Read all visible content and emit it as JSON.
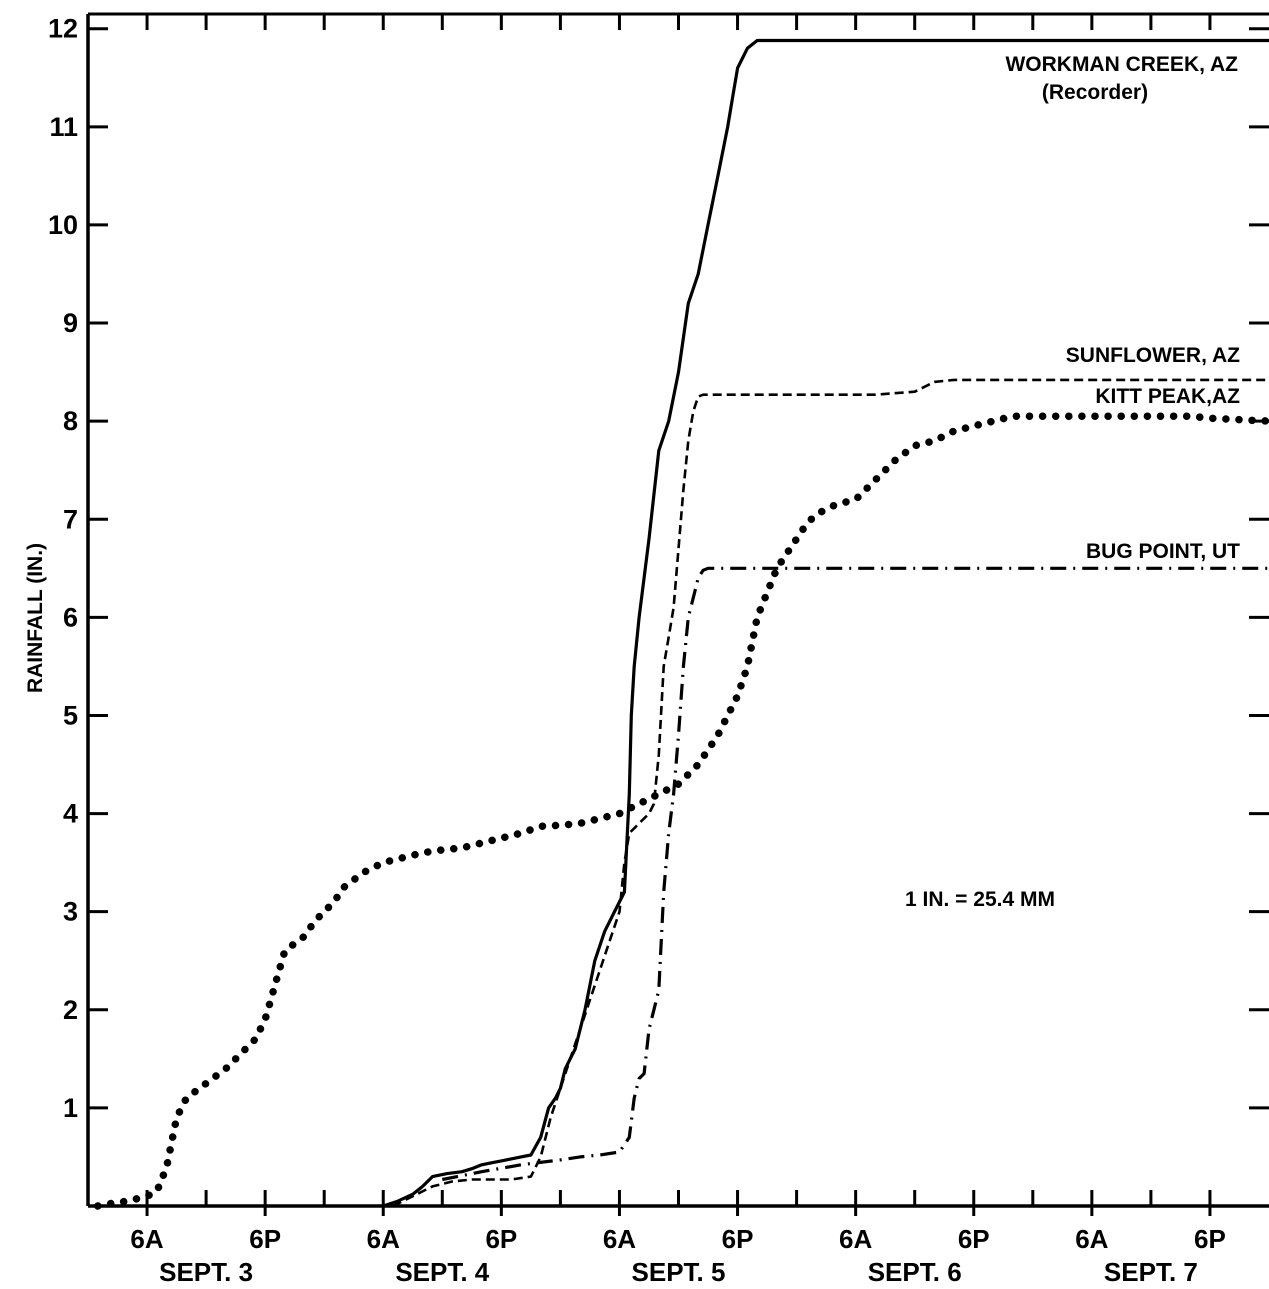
{
  "chart_data": {
    "type": "line",
    "title": "",
    "xlabel": "",
    "ylabel": "RAINFALL (IN.)",
    "ylim": [
      0,
      12
    ],
    "xlim_hours_from_sept3_midnight": [
      0,
      120
    ],
    "yticks": [
      "1",
      "2",
      "3",
      "4",
      "5",
      "6",
      "7",
      "8",
      "9",
      "10",
      "11",
      "12"
    ],
    "xticks": [
      {
        "time": "6A",
        "day": "SEPT. 3"
      },
      {
        "time": "6P",
        "day": ""
      },
      {
        "time": "6A",
        "day": "SEPT. 4"
      },
      {
        "time": "6P",
        "day": ""
      },
      {
        "time": "6A",
        "day": "SEPT. 5"
      },
      {
        "time": "6P",
        "day": ""
      },
      {
        "time": "6A",
        "day": "SEPT. 6"
      },
      {
        "time": "6P",
        "day": ""
      },
      {
        "time": "6A",
        "day": "SEPT. 7"
      },
      {
        "time": "6P",
        "day": ""
      }
    ],
    "xtick_hours": [
      6,
      18,
      30,
      42,
      54,
      66,
      78,
      90,
      102,
      114
    ],
    "day_label_hours": [
      12,
      36,
      60,
      84,
      108
    ],
    "day_labels": [
      "SEPT. 3",
      "SEPT. 4",
      "SEPT. 5",
      "SEPT. 6",
      "SEPT. 7"
    ],
    "annotation": "1 IN. = 25.4 MM",
    "grid": false,
    "series": [
      {
        "name": "WORKMAN CREEK, AZ",
        "subname": "(Recorder)",
        "style": "solid",
        "x": [
          30,
          31.5,
          33,
          34,
          35,
          36.5,
          38,
          39,
          40,
          41,
          42,
          43,
          44,
          45,
          46,
          46.8,
          47.5,
          48,
          48.5,
          49,
          49.5,
          50.5,
          51.5,
          52.5,
          53.5,
          54.5,
          55,
          55.2,
          55.5,
          56,
          57,
          58,
          59,
          60,
          61,
          62,
          63,
          64,
          65,
          65.5,
          66,
          67,
          68,
          69,
          70,
          71,
          72,
          80,
          90,
          100,
          110,
          120
        ],
        "y": [
          0,
          0.05,
          0.12,
          0.2,
          0.3,
          0.33,
          0.35,
          0.38,
          0.42,
          0.44,
          0.46,
          0.48,
          0.5,
          0.52,
          0.7,
          1.0,
          1.1,
          1.2,
          1.4,
          1.5,
          1.6,
          2.0,
          2.5,
          2.8,
          3.0,
          3.2,
          4.2,
          5.0,
          5.5,
          6.0,
          6.8,
          7.7,
          8.0,
          8.5,
          9.2,
          9.5,
          10.0,
          10.5,
          11.0,
          11.3,
          11.6,
          11.8,
          11.88,
          11.88,
          11.88,
          11.88,
          11.88,
          11.88,
          11.88,
          11.88,
          11.88,
          11.88
        ],
        "end_label": "WORKMAN CREEK, AZ"
      },
      {
        "name": "SUNFLOWER, AZ",
        "style": "dashed",
        "x": [
          31,
          33,
          35,
          37,
          39,
          41,
          43,
          45,
          46,
          47,
          48,
          49,
          50,
          51,
          52,
          53,
          54,
          54.5,
          55,
          56,
          57,
          57.5,
          58,
          58.5,
          59,
          59.5,
          60,
          60.5,
          61,
          61.5,
          62,
          62.5,
          63,
          64,
          66,
          70,
          74,
          80,
          84,
          86,
          88,
          94,
          100,
          110,
          120
        ],
        "y": [
          0,
          0.1,
          0.2,
          0.25,
          0.27,
          0.27,
          0.27,
          0.3,
          0.5,
          0.9,
          1.2,
          1.5,
          1.8,
          2.1,
          2.4,
          2.7,
          3.0,
          3.5,
          3.8,
          3.9,
          4.0,
          4.1,
          4.6,
          5.5,
          5.8,
          6.1,
          6.7,
          7.3,
          7.8,
          8.1,
          8.25,
          8.27,
          8.27,
          8.27,
          8.27,
          8.27,
          8.27,
          8.27,
          8.3,
          8.4,
          8.42,
          8.42,
          8.42,
          8.42,
          8.42
        ]
      },
      {
        "name": "KITT PEAK,AZ",
        "style": "dotted",
        "x": [
          1,
          2,
          4,
          6,
          7,
          8,
          9,
          10,
          12,
          14,
          16,
          17,
          18,
          20,
          22,
          23,
          24,
          25,
          26,
          28,
          30,
          32,
          34,
          36,
          38,
          40,
          42,
          44,
          46,
          48,
          50,
          52,
          54,
          56,
          58,
          60,
          62,
          64,
          65,
          66,
          67,
          68,
          70,
          72,
          73,
          74,
          75,
          76,
          78,
          80,
          82,
          84,
          86,
          88,
          90,
          92,
          94,
          96,
          98,
          100,
          102,
          104,
          106,
          108,
          110,
          112,
          114,
          116,
          118,
          120
        ],
        "y": [
          0,
          0.02,
          0.05,
          0.1,
          0.15,
          0.4,
          0.9,
          1.1,
          1.25,
          1.4,
          1.6,
          1.7,
          1.9,
          2.6,
          2.75,
          2.9,
          3.0,
          3.1,
          3.25,
          3.4,
          3.5,
          3.55,
          3.6,
          3.63,
          3.65,
          3.7,
          3.75,
          3.8,
          3.87,
          3.88,
          3.9,
          3.95,
          4.0,
          4.1,
          4.2,
          4.3,
          4.5,
          4.8,
          5.0,
          5.2,
          5.5,
          6.0,
          6.5,
          6.8,
          6.95,
          7.05,
          7.1,
          7.15,
          7.2,
          7.4,
          7.6,
          7.75,
          7.8,
          7.9,
          7.95,
          8.0,
          8.05,
          8.05,
          8.05,
          8.05,
          8.05,
          8.05,
          8.05,
          8.05,
          8.05,
          8.05,
          8.03,
          8.02,
          8.01,
          8.0
        ]
      },
      {
        "name": "BUG POINT, UT",
        "style": "dash-dot",
        "x": [
          36,
          40,
          44,
          48,
          50,
          52,
          54,
          55,
          55.5,
          56,
          56.5,
          57,
          57.5,
          58,
          58.5,
          59,
          59.5,
          60,
          60.5,
          61,
          61.5,
          62,
          62.5,
          63,
          64,
          66,
          70,
          80,
          90,
          100,
          110,
          120
        ],
        "y": [
          0.27,
          0.35,
          0.42,
          0.47,
          0.5,
          0.52,
          0.55,
          0.7,
          1.1,
          1.3,
          1.35,
          1.8,
          2.0,
          2.2,
          3.2,
          3.8,
          4.2,
          4.8,
          5.5,
          6.0,
          6.2,
          6.4,
          6.48,
          6.5,
          6.5,
          6.5,
          6.5,
          6.5,
          6.5,
          6.5,
          6.5,
          6.5
        ]
      }
    ]
  }
}
